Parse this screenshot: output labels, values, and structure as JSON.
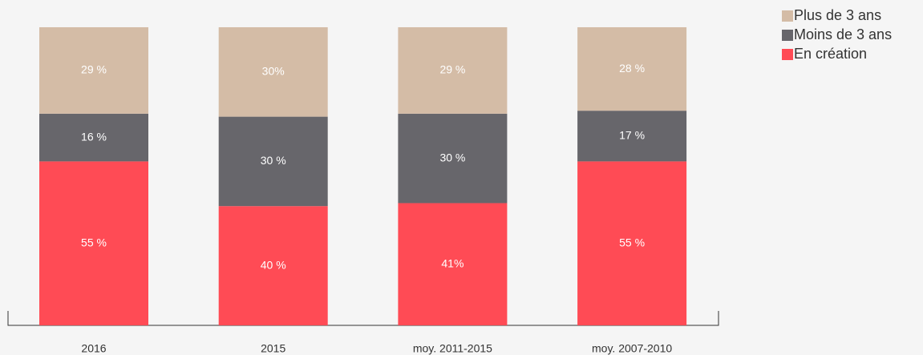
{
  "chart_data": {
    "type": "stacked_bar",
    "categories": [
      "2016",
      "2015",
      "moy. 2011-2015",
      "moy. 2007-2010"
    ],
    "series": [
      {
        "name": "En création",
        "color": "#ff4b55",
        "values": [
          55,
          40,
          41,
          55
        ],
        "value_labels": [
          "55 %",
          "40 %",
          "41%",
          "55 %"
        ]
      },
      {
        "name": "Moins de 3 ans",
        "color": "#67666b",
        "values": [
          16,
          30,
          30,
          17
        ],
        "value_labels": [
          "16 %",
          "30 %",
          "30 %",
          "17 %"
        ]
      },
      {
        "name": "Plus de 3 ans",
        "color": "#d4bca6",
        "values": [
          29,
          30,
          29,
          28
        ],
        "value_labels": [
          "29 %",
          "30%",
          "29 %",
          "28 %"
        ]
      }
    ]
  }
}
